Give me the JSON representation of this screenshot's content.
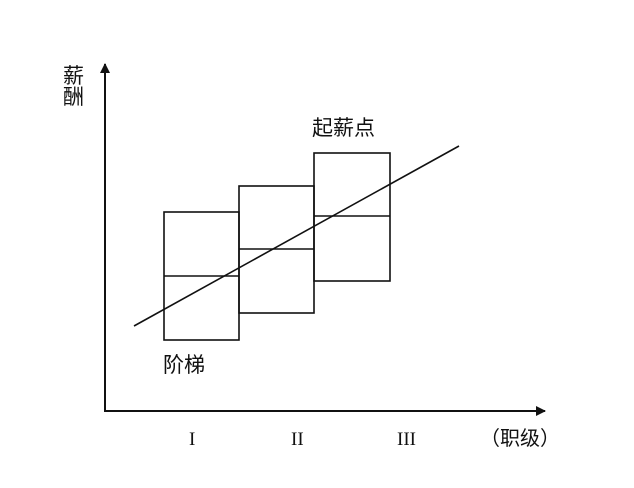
{
  "y_axis_label": "薪酬",
  "x_axis_label": "（职级）",
  "x_ticks": [
    "I",
    "II",
    "III"
  ],
  "annotations": {
    "line_label": "起薪点",
    "boxes_label": "阶梯"
  },
  "colors": {
    "stroke": "#111111",
    "background": "#ffffff"
  }
}
